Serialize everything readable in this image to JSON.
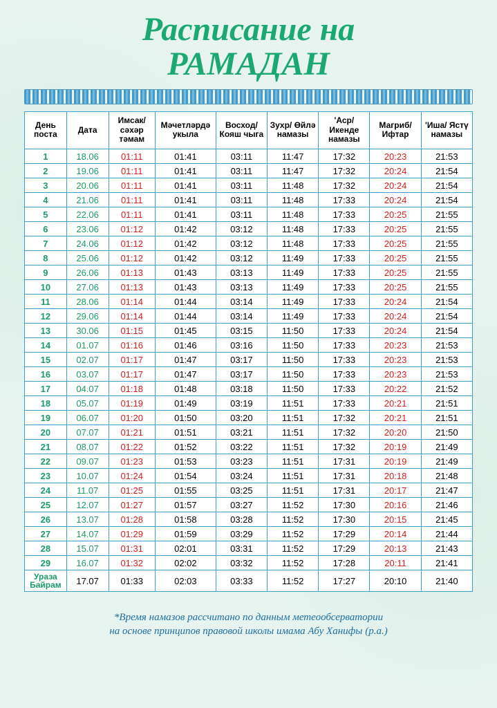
{
  "title_line1": "Расписание на",
  "title_line2": "РАМАДАН",
  "columns": [
    "День поста",
    "Дата",
    "Имсак/ сәхәр тәмам",
    "Мәчетләрдә укыла",
    "Восход/ Кояш чыга",
    "Зухр/ Өйлә намазы",
    "'Аср/ Икенде намазы",
    "Магриб/ Ифтар",
    "'Иша/ Ястү намазы"
  ],
  "column_widths_pct": [
    9,
    9,
    10,
    13,
    11,
    11,
    11,
    11,
    11
  ],
  "col_css_class": [
    "c-day",
    "c-date",
    "c-red",
    "c-blk",
    "c-blk",
    "c-blk",
    "c-blk",
    "c-red",
    "c-blk"
  ],
  "rows": [
    [
      "1",
      "18.06",
      "01:11",
      "01:41",
      "03:11",
      "11:47",
      "17:32",
      "20:23",
      "21:53"
    ],
    [
      "2",
      "19.06",
      "01:11",
      "01:41",
      "03:11",
      "11:47",
      "17:32",
      "20:24",
      "21:54"
    ],
    [
      "3",
      "20.06",
      "01:11",
      "01:41",
      "03:11",
      "11:48",
      "17:32",
      "20:24",
      "21:54"
    ],
    [
      "4",
      "21.06",
      "01:11",
      "01:41",
      "03:11",
      "11:48",
      "17:33",
      "20:24",
      "21:54"
    ],
    [
      "5",
      "22.06",
      "01:11",
      "01:41",
      "03:11",
      "11:48",
      "17:33",
      "20:25",
      "21:55"
    ],
    [
      "6",
      "23.06",
      "01:12",
      "01:42",
      "03:12",
      "11:48",
      "17:33",
      "20:25",
      "21:55"
    ],
    [
      "7",
      "24.06",
      "01:12",
      "01:42",
      "03:12",
      "11:48",
      "17:33",
      "20:25",
      "21:55"
    ],
    [
      "8",
      "25.06",
      "01:12",
      "01:42",
      "03:12",
      "11:49",
      "17:33",
      "20:25",
      "21:55"
    ],
    [
      "9",
      "26.06",
      "01:13",
      "01:43",
      "03:13",
      "11:49",
      "17:33",
      "20:25",
      "21:55"
    ],
    [
      "10",
      "27.06",
      "01:13",
      "01:43",
      "03:13",
      "11:49",
      "17:33",
      "20:25",
      "21:55"
    ],
    [
      "11",
      "28.06",
      "01:14",
      "01:44",
      "03:14",
      "11:49",
      "17:33",
      "20:24",
      "21:54"
    ],
    [
      "12",
      "29.06",
      "01:14",
      "01:44",
      "03:14",
      "11:49",
      "17:33",
      "20:24",
      "21:54"
    ],
    [
      "13",
      "30.06",
      "01:15",
      "01:45",
      "03:15",
      "11:50",
      "17:33",
      "20:24",
      "21:54"
    ],
    [
      "14",
      "01.07",
      "01:16",
      "01:46",
      "03:16",
      "11:50",
      "17:33",
      "20:23",
      "21:53"
    ],
    [
      "15",
      "02.07",
      "01:17",
      "01:47",
      "03:17",
      "11:50",
      "17:33",
      "20:23",
      "21:53"
    ],
    [
      "16",
      "03.07",
      "01:17",
      "01:47",
      "03:17",
      "11:50",
      "17:33",
      "20:23",
      "21:53"
    ],
    [
      "17",
      "04.07",
      "01:18",
      "01:48",
      "03:18",
      "11:50",
      "17:33",
      "20:22",
      "21:52"
    ],
    [
      "18",
      "05.07",
      "01:19",
      "01:49",
      "03:19",
      "11:51",
      "17:33",
      "20:21",
      "21:51"
    ],
    [
      "19",
      "06.07",
      "01:20",
      "01:50",
      "03:20",
      "11:51",
      "17:32",
      "20:21",
      "21:51"
    ],
    [
      "20",
      "07.07",
      "01:21",
      "01:51",
      "03:21",
      "11:51",
      "17:32",
      "20:20",
      "21:50"
    ],
    [
      "21",
      "08.07",
      "01:22",
      "01:52",
      "03:22",
      "11:51",
      "17:32",
      "20:19",
      "21:49"
    ],
    [
      "22",
      "09.07",
      "01:23",
      "01:53",
      "03:23",
      "11:51",
      "17:31",
      "20:19",
      "21:49"
    ],
    [
      "23",
      "10.07",
      "01:24",
      "01:54",
      "03:24",
      "11:51",
      "17:31",
      "20:18",
      "21:48"
    ],
    [
      "24",
      "11.07",
      "01:25",
      "01:55",
      "03:25",
      "11:51",
      "17:31",
      "20:17",
      "21:47"
    ],
    [
      "25",
      "12.07",
      "01:27",
      "01:57",
      "03:27",
      "11:52",
      "17:30",
      "20:16",
      "21:46"
    ],
    [
      "26",
      "13.07",
      "01:28",
      "01:58",
      "03:28",
      "11:52",
      "17:30",
      "20:15",
      "21:45"
    ],
    [
      "27",
      "14.07",
      "01:29",
      "01:59",
      "03:29",
      "11:52",
      "17:29",
      "20:14",
      "21:44"
    ],
    [
      "28",
      "15.07",
      "01:31",
      "02:01",
      "03:31",
      "11:52",
      "17:29",
      "20:13",
      "21:43"
    ],
    [
      "29",
      "16.07",
      "01:32",
      "02:02",
      "03:32",
      "11:52",
      "17:28",
      "20:11",
      "21:41"
    ]
  ],
  "special_row": [
    "Ураза Байрам",
    "17.07",
    "01:33",
    "02:03",
    "03:33",
    "11:52",
    "17:27",
    "20:10",
    "21:40"
  ],
  "footnote_line1": "*Время намазов рассчитано по данным метеообсерватории",
  "footnote_line2": "на основе принципов правовой школы имама Абу Ханифы (р.а.)",
  "colors": {
    "title": "#1ca872",
    "border": "#3aa0d0",
    "day_text": "#1a9c68",
    "red_text": "#d11e1e",
    "black_text": "#000000",
    "footnote": "#1b6fa0",
    "background": "#e8f4f0"
  }
}
